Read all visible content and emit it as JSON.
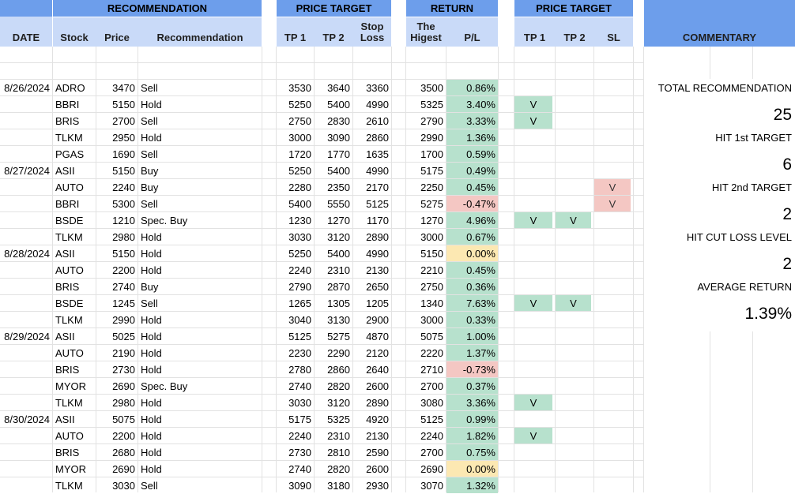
{
  "headers": {
    "date": "DATE",
    "recommendation_group": "RECOMMENDATION",
    "price_target_group": "PRICE TARGET",
    "return_group": "RETURN",
    "hit_group": "PRICE TARGET",
    "commentary": "COMMENTARY",
    "stock": "Stock",
    "price": "Price",
    "recommendation": "Recommendation",
    "tp1": "TP 1",
    "tp2": "TP 2",
    "stop_loss": "Stop Loss",
    "highest": "The Higest",
    "pl": "P/L",
    "hit_tp1": "TP 1",
    "hit_tp2": "TP 2",
    "hit_sl": "SL"
  },
  "rows": [
    {
      "date": "8/26/2024",
      "stock": "ADRO",
      "price": "3470",
      "rec": "Sell",
      "tp1": "3530",
      "tp2": "3640",
      "sl": "3360",
      "high": "3500",
      "pl": "0.86%",
      "pl_color": "green",
      "h1": "",
      "h2": "",
      "hs": ""
    },
    {
      "date": "",
      "stock": "BBRI",
      "price": "5150",
      "rec": "Hold",
      "tp1": "5250",
      "tp2": "5400",
      "sl": "4990",
      "high": "5325",
      "pl": "3.40%",
      "pl_color": "green",
      "h1": "V",
      "h2": "",
      "hs": ""
    },
    {
      "date": "",
      "stock": "BRIS",
      "price": "2700",
      "rec": "Sell",
      "tp1": "2750",
      "tp2": "2830",
      "sl": "2610",
      "high": "2790",
      "pl": "3.33%",
      "pl_color": "green",
      "h1": "V",
      "h2": "",
      "hs": ""
    },
    {
      "date": "",
      "stock": "TLKM",
      "price": "2950",
      "rec": "Hold",
      "tp1": "3000",
      "tp2": "3090",
      "sl": "2860",
      "high": "2990",
      "pl": "1.36%",
      "pl_color": "green",
      "h1": "",
      "h2": "",
      "hs": ""
    },
    {
      "date": "",
      "stock": "PGAS",
      "price": "1690",
      "rec": "Sell",
      "tp1": "1720",
      "tp2": "1770",
      "sl": "1635",
      "high": "1700",
      "pl": "0.59%",
      "pl_color": "green",
      "h1": "",
      "h2": "",
      "hs": ""
    },
    {
      "date": "8/27/2024",
      "stock": "ASII",
      "price": "5150",
      "rec": "Buy",
      "tp1": "5250",
      "tp2": "5400",
      "sl": "4990",
      "high": "5175",
      "pl": "0.49%",
      "pl_color": "green",
      "h1": "",
      "h2": "",
      "hs": ""
    },
    {
      "date": "",
      "stock": "AUTO",
      "price": "2240",
      "rec": "Buy",
      "tp1": "2280",
      "tp2": "2350",
      "sl": "2170",
      "high": "2250",
      "pl": "0.45%",
      "pl_color": "green",
      "h1": "",
      "h2": "",
      "hs": "V"
    },
    {
      "date": "",
      "stock": "BBRI",
      "price": "5300",
      "rec": "Sell",
      "tp1": "5400",
      "tp2": "5550",
      "sl": "5125",
      "high": "5275",
      "pl": "-0.47%",
      "pl_color": "red",
      "h1": "",
      "h2": "",
      "hs": "V"
    },
    {
      "date": "",
      "stock": "BSDE",
      "price": "1210",
      "rec": "Spec. Buy",
      "tp1": "1230",
      "tp2": "1270",
      "sl": "1170",
      "high": "1270",
      "pl": "4.96%",
      "pl_color": "green",
      "h1": "V",
      "h2": "V",
      "hs": ""
    },
    {
      "date": "",
      "stock": "TLKM",
      "price": "2980",
      "rec": "Hold",
      "tp1": "3030",
      "tp2": "3120",
      "sl": "2890",
      "high": "3000",
      "pl": "0.67%",
      "pl_color": "green",
      "h1": "",
      "h2": "",
      "hs": ""
    },
    {
      "date": "8/28/2024",
      "stock": "ASII",
      "price": "5150",
      "rec": "Hold",
      "tp1": "5250",
      "tp2": "5400",
      "sl": "4990",
      "high": "5150",
      "pl": "0.00%",
      "pl_color": "yellow",
      "h1": "",
      "h2": "",
      "hs": ""
    },
    {
      "date": "",
      "stock": "AUTO",
      "price": "2200",
      "rec": "Hold",
      "tp1": "2240",
      "tp2": "2310",
      "sl": "2130",
      "high": "2210",
      "pl": "0.45%",
      "pl_color": "green",
      "h1": "",
      "h2": "",
      "hs": ""
    },
    {
      "date": "",
      "stock": "BRIS",
      "price": "2740",
      "rec": "Buy",
      "tp1": "2790",
      "tp2": "2870",
      "sl": "2650",
      "high": "2750",
      "pl": "0.36%",
      "pl_color": "green",
      "h1": "",
      "h2": "",
      "hs": ""
    },
    {
      "date": "",
      "stock": "BSDE",
      "price": "1245",
      "rec": "Sell",
      "tp1": "1265",
      "tp2": "1305",
      "sl": "1205",
      "high": "1340",
      "pl": "7.63%",
      "pl_color": "green",
      "h1": "V",
      "h2": "V",
      "hs": ""
    },
    {
      "date": "",
      "stock": "TLKM",
      "price": "2990",
      "rec": "Hold",
      "tp1": "3040",
      "tp2": "3130",
      "sl": "2900",
      "high": "3000",
      "pl": "0.33%",
      "pl_color": "green",
      "h1": "",
      "h2": "",
      "hs": ""
    },
    {
      "date": "8/29/2024",
      "stock": "ASII",
      "price": "5025",
      "rec": "Hold",
      "tp1": "5125",
      "tp2": "5275",
      "sl": "4870",
      "high": "5075",
      "pl": "1.00%",
      "pl_color": "green",
      "h1": "",
      "h2": "",
      "hs": ""
    },
    {
      "date": "",
      "stock": "AUTO",
      "price": "2190",
      "rec": "Hold",
      "tp1": "2230",
      "tp2": "2290",
      "sl": "2120",
      "high": "2220",
      "pl": "1.37%",
      "pl_color": "green",
      "h1": "",
      "h2": "",
      "hs": ""
    },
    {
      "date": "",
      "stock": "BRIS",
      "price": "2730",
      "rec": "Hold",
      "tp1": "2780",
      "tp2": "2860",
      "sl": "2640",
      "high": "2710",
      "pl": "-0.73%",
      "pl_color": "red",
      "h1": "",
      "h2": "",
      "hs": ""
    },
    {
      "date": "",
      "stock": "MYOR",
      "price": "2690",
      "rec": "Spec. Buy",
      "tp1": "2740",
      "tp2": "2820",
      "sl": "2600",
      "high": "2700",
      "pl": "0.37%",
      "pl_color": "green",
      "h1": "",
      "h2": "",
      "hs": ""
    },
    {
      "date": "",
      "stock": "TLKM",
      "price": "2980",
      "rec": "Hold",
      "tp1": "3030",
      "tp2": "3120",
      "sl": "2890",
      "high": "3080",
      "pl": "3.36%",
      "pl_color": "green",
      "h1": "V",
      "h2": "",
      "hs": ""
    },
    {
      "date": "8/30/2024",
      "stock": "ASII",
      "price": "5075",
      "rec": "Hold",
      "tp1": "5175",
      "tp2": "5325",
      "sl": "4920",
      "high": "5125",
      "pl": "0.99%",
      "pl_color": "green",
      "h1": "",
      "h2": "",
      "hs": ""
    },
    {
      "date": "",
      "stock": "AUTO",
      "price": "2200",
      "rec": "Hold",
      "tp1": "2240",
      "tp2": "2310",
      "sl": "2130",
      "high": "2240",
      "pl": "1.82%",
      "pl_color": "green",
      "h1": "V",
      "h2": "",
      "hs": ""
    },
    {
      "date": "",
      "stock": "BRIS",
      "price": "2680",
      "rec": "Hold",
      "tp1": "2730",
      "tp2": "2810",
      "sl": "2590",
      "high": "2700",
      "pl": "0.75%",
      "pl_color": "green",
      "h1": "",
      "h2": "",
      "hs": ""
    },
    {
      "date": "",
      "stock": "MYOR",
      "price": "2690",
      "rec": "Hold",
      "tp1": "2740",
      "tp2": "2820",
      "sl": "2600",
      "high": "2690",
      "pl": "0.00%",
      "pl_color": "yellow",
      "h1": "",
      "h2": "",
      "hs": ""
    },
    {
      "date": "",
      "stock": "TLKM",
      "price": "3030",
      "rec": "Sell",
      "tp1": "3090",
      "tp2": "3180",
      "sl": "2930",
      "high": "3070",
      "pl": "1.32%",
      "pl_color": "green",
      "h1": "",
      "h2": "",
      "hs": ""
    }
  ],
  "commentary": {
    "total_label": "TOTAL RECOMMENDATION",
    "total_value": "25",
    "hit1_label": "HIT 1st TARGET",
    "hit1_value": "6",
    "hit2_label": "HIT 2nd TARGET",
    "hit2_value": "2",
    "cut_label": "HIT CUT LOSS LEVEL",
    "cut_value": "2",
    "avg_label": "AVERAGE RETURN",
    "avg_value": "1.39%"
  },
  "colors": {
    "header_dark": "#6d9eeb",
    "header_light": "#c9daf8",
    "green": "#b7e1cd",
    "red": "#f4c7c3",
    "yellow": "#fce8b2"
  }
}
